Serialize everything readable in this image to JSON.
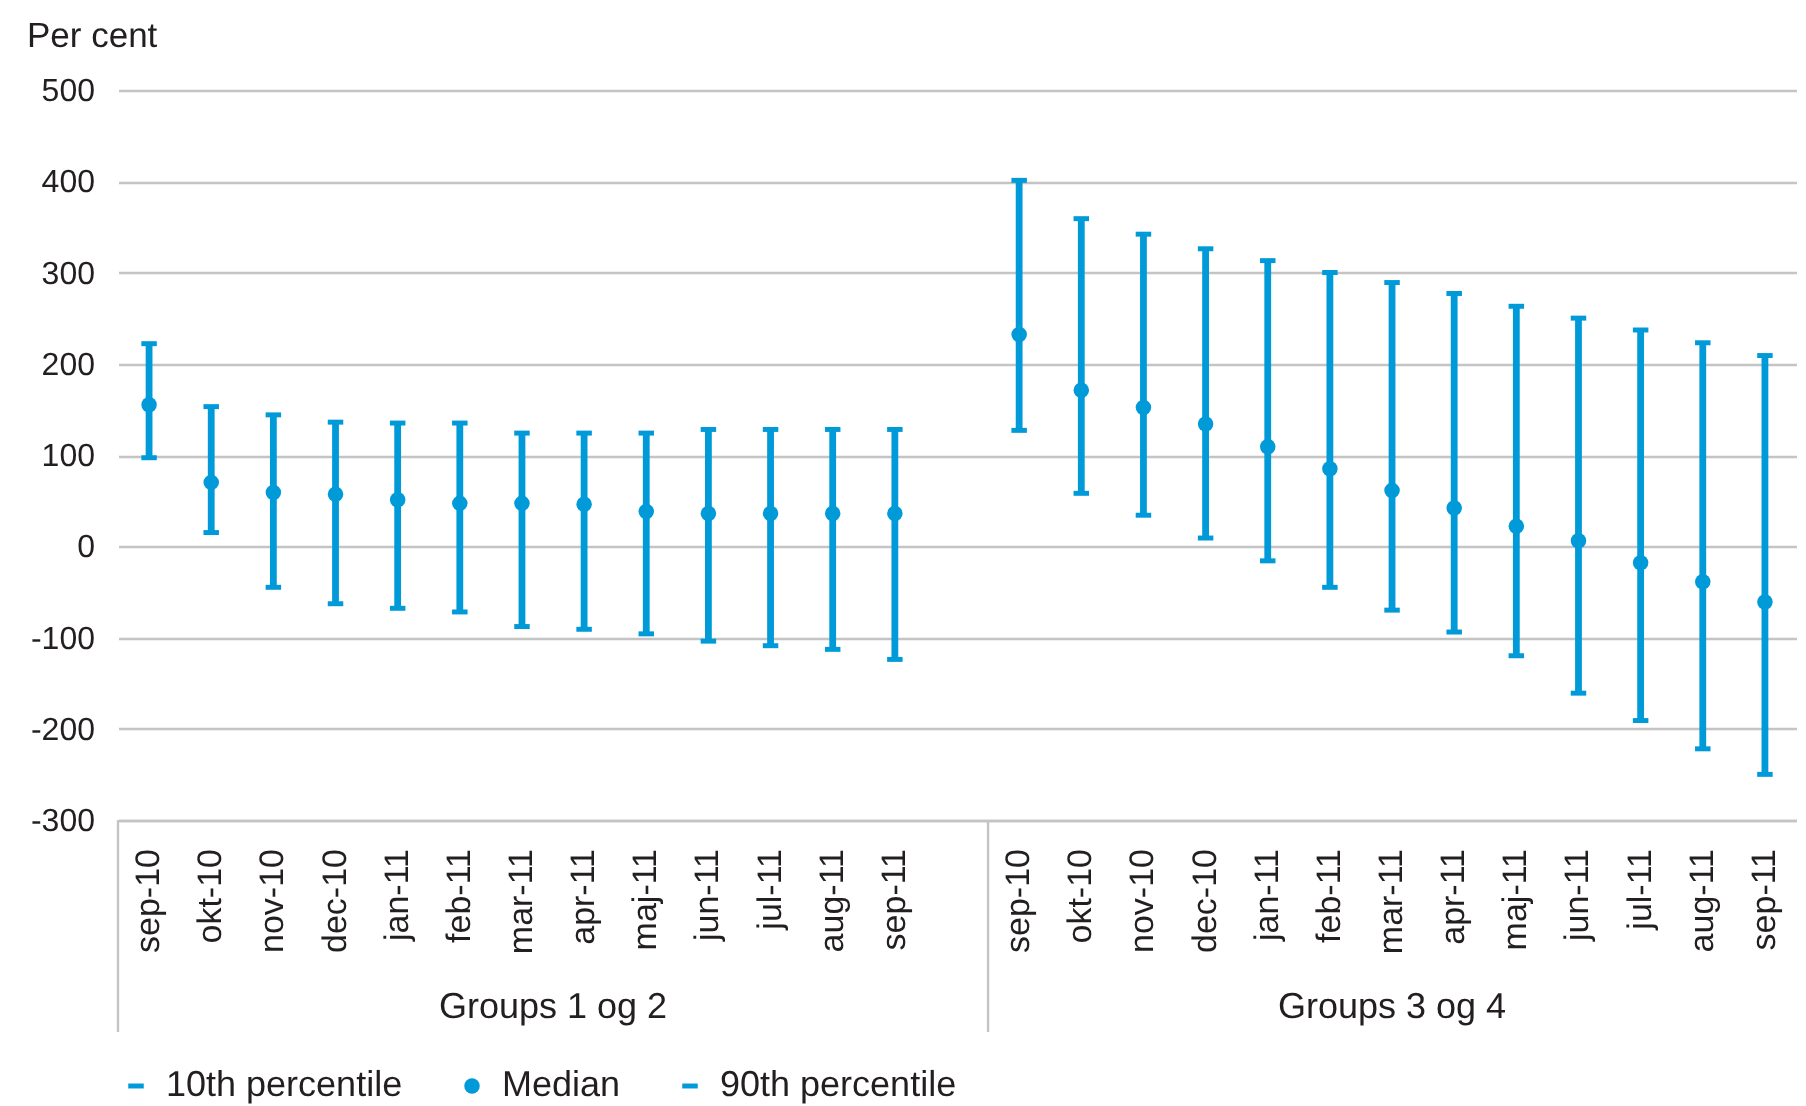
{
  "chart_data": {
    "type": "scatter",
    "ylabel": "Per cent",
    "categories": [
      "sep-10",
      "okt-10",
      "nov-10",
      "dec-10",
      "jan-11",
      "feb-11",
      "mar-11",
      "apr-11",
      "maj-11",
      "jun-11",
      "jul-11",
      "aug-11",
      "sep-11",
      null,
      "sep-10",
      "okt-10",
      "nov-10",
      "dec-10",
      "jan-11",
      "feb-11",
      "mar-11",
      "apr-11",
      "maj-11",
      "jun-11",
      "jul-11",
      "aug-11",
      "sep-11"
    ],
    "series": [
      {
        "name": "10th percentile",
        "color": "#009ad9",
        "values": [
          97,
          15,
          -45,
          -63,
          -68,
          -72,
          -88,
          -91,
          -96,
          -104,
          -109,
          -113,
          -124,
          null,
          127,
          58,
          34,
          9,
          -16,
          -45,
          -70,
          -94,
          -120,
          -161,
          -191,
          -222,
          -250
        ]
      },
      {
        "name": "Median",
        "color": "#009ad9",
        "marker": "circle",
        "values": [
          155,
          70,
          59,
          57,
          51,
          47,
          47,
          46,
          38,
          36,
          36,
          36,
          36,
          null,
          232,
          171,
          152,
          134,
          109,
          85,
          61,
          42,
          22,
          6,
          -18,
          -39,
          -61
        ]
      },
      {
        "name": "90th percentile",
        "color": "#009ad9",
        "values": [
          222,
          153,
          144,
          136,
          135,
          135,
          124,
          124,
          124,
          128,
          128,
          128,
          128,
          null,
          401,
          359,
          342,
          326,
          313,
          300,
          289,
          277,
          263,
          250,
          237,
          223,
          209
        ]
      }
    ],
    "ylim": [
      -300,
      500
    ],
    "yticks": [
      -300,
      -200,
      -100,
      0,
      100,
      200,
      300,
      400,
      500
    ],
    "grid": "y",
    "legend": "bottom left",
    "annotations": [
      "Groups 1 og 2",
      "Groups 3 og 4"
    ]
  }
}
